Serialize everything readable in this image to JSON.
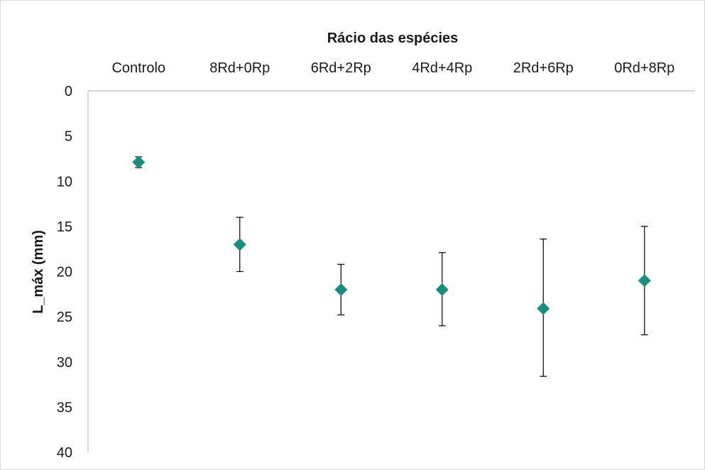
{
  "chart_data": {
    "type": "scatter",
    "title": "",
    "xlabel": "Rácio das espécies",
    "ylabel": "L_máx (mm)",
    "categories": [
      "Controlo",
      "8Rd+0Rp",
      "6Rd+2Rp",
      "4Rd+4Rp",
      "2Rd+6Rp",
      "0Rd+8Rp"
    ],
    "series": [
      {
        "values": [
          7.9,
          17.0,
          22.0,
          22.0,
          24.1,
          21.0
        ],
        "error_low": [
          7.3,
          14.0,
          19.2,
          17.9,
          16.4,
          15.0
        ],
        "error_high": [
          8.5,
          20.0,
          24.8,
          26.0,
          31.6,
          27.0
        ]
      }
    ],
    "ylim": [
      0,
      40
    ],
    "y_ticks": [
      0,
      5,
      10,
      15,
      20,
      25,
      30,
      35,
      40
    ],
    "y_axis_reversed": true,
    "x_axis_position": "top",
    "marker": "diamond",
    "marker_color": "#1a8c80",
    "errorbar_color": "#000000",
    "grid": false,
    "legend": "none"
  }
}
